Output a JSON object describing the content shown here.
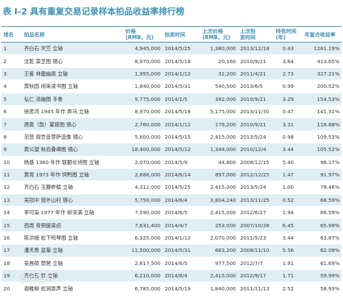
{
  "title": "表 I-2 具有重复交易记录样本拍品收益率排行榜",
  "headers": {
    "rank": "排名",
    "name": "拍品名称",
    "price_line1": "价格",
    "price_line2": "(RMB，元)",
    "date": "拍卖时间",
    "prev_price_line1": "上次价格",
    "prev_price_line2": "(RMB，元)",
    "prev_date_line1": "上次拍",
    "prev_date_line2": "卖时间",
    "hold_line1": "持有时间",
    "hold_line2": "(年)",
    "rate": "年复合收益率"
  },
  "rows": [
    {
      "rank": "1",
      "name": "齐白石 天竺 立轴",
      "price": "4,945,000",
      "date": "2014/5/25",
      "prev_price": "1,380,000",
      "prev_date": "2013/12/18",
      "hold": "0.43",
      "rate": "1281.19%"
    },
    {
      "rank": "2",
      "name": "沈乾 菜芝图 镜心",
      "price": "8,970,000",
      "date": "2014/5/18",
      "prev_price": "20,160",
      "prev_date": "2010/9/21",
      "hold": "3.64",
      "rate": "413.65%"
    },
    {
      "rank": "3",
      "name": "王鉴 林壑幽居 立轴",
      "price": "1,955,000",
      "date": "2014/1/12",
      "prev_price": "32,200",
      "prev_date": "2011/4/21",
      "hold": "2.73",
      "rate": "327.21%"
    },
    {
      "rank": "4",
      "name": "黄秋园 闲来读书图 立轴",
      "price": "1,840,000",
      "date": "2014/5/31",
      "prev_price": "540,500",
      "prev_date": "2013/6/5",
      "hold": "0.99",
      "rate": "200.52%"
    },
    {
      "rank": "5",
      "name": "弘仁 清幽图 手卷",
      "price": "9,775,000",
      "date": "2014/1/5",
      "prev_price": "392,000",
      "prev_date": "2010/9/21",
      "hold": "3.29",
      "rate": "154.53%"
    },
    {
      "rank": "6",
      "name": "徐悲鸿 1945 年作 奔马 立轴",
      "price": "8,970,000",
      "date": "2014/5/18",
      "prev_price": "5,175,000",
      "prev_date": "2013/11/30",
      "hold": "0.47",
      "rate": "141.31%"
    },
    {
      "rank": "7",
      "name": "唐寅（款）宴居图 镜心",
      "price": "2,760,000",
      "date": "2014/1/12",
      "prev_price": "179,200",
      "prev_date": "2010/9/21",
      "hold": "3.31",
      "rate": "118.88%"
    },
    {
      "rank": "8",
      "name": "范曾 观世音菩萨造像 镜心",
      "price": "5,600,000",
      "date": "2014/5/15",
      "prev_price": "2,415,000",
      "prev_date": "2013/5/24",
      "hold": "0.98",
      "rate": "109.53%"
    },
    {
      "rank": "9",
      "name": "黄公望 秋岩叠嶂图 镜心",
      "price": "18,400,000",
      "date": "2014/5/12",
      "prev_price": "1,344,000",
      "prev_date": "2010/12/4",
      "hold": "3.44",
      "rate": "105.52%"
    },
    {
      "rank": "10",
      "name": "杨基 1360 年作 联额论诗图 立轴",
      "price": "2,070,000",
      "date": "2014/5/9",
      "prev_price": "44,800",
      "prev_date": "2008/12/15",
      "hold": "5.40",
      "rate": "98.17%"
    },
    {
      "rank": "11",
      "name": "黄胄 1973 年作 饲鸭图 立轴",
      "price": "2,688,000",
      "date": "2014/6/14",
      "prev_price": "897,000",
      "prev_date": "2012/12/25",
      "hold": "1.47",
      "rate": "91.97%"
    },
    {
      "rank": "12",
      "name": "齐白石 玉簪蚱蜢 立轴",
      "price": "4,312,000",
      "date": "2014/5/25",
      "prev_price": "2,415,000",
      "prev_date": "2013/5/24",
      "hold": "1.00",
      "rate": "78.46%"
    },
    {
      "rank": "13",
      "name": "吴冠中 窗外山村 镜心",
      "price": "5,750,000",
      "date": "2014/6/4",
      "prev_price": "3,804,240",
      "prev_date": "2013/11/25",
      "hold": "0.52",
      "rate": "68.59%"
    },
    {
      "rank": "14",
      "name": "李可染 1977 年作 树深满 立轴",
      "price": "7,590,000",
      "date": "2014/6/5",
      "prev_price": "2,415,000",
      "prev_date": "2012/6/27",
      "hold": "1.94",
      "rate": "66.59%"
    },
    {
      "rank": "15",
      "name": "西周 青铜提梁卣",
      "price": "7,631,400",
      "date": "2014/4/7",
      "prev_price": "253,000",
      "prev_date": "2007/10/28",
      "hold": "6.45",
      "rate": "65.99%"
    },
    {
      "rank": "16",
      "name": "陈洪绶 松下鸣琴图 立轴",
      "price": "6,325,000",
      "date": "2014/1/12",
      "prev_price": "2,070,000",
      "prev_date": "2011/5/23",
      "hold": "3.44",
      "rate": "63.87%"
    },
    {
      "rank": "17",
      "name": "潘天寿 盆菊 立轴",
      "price": "11,500,000",
      "date": "2014/5/31",
      "prev_price": "683,200",
      "prev_date": "2008/11/10",
      "hold": "5.56",
      "rate": "62.09%"
    },
    {
      "rank": "18",
      "name": "吴昌硕 琵琶 立轴",
      "price": "2,817,500",
      "date": "2014/6/5",
      "prev_price": "977,500",
      "prev_date": "2012/7/7",
      "hold": "1.91",
      "rate": "61.69%"
    },
    {
      "rank": "19",
      "name": "齐白石 虾 立轴",
      "price": "6,210,000",
      "date": "2014/6/4",
      "prev_price": "2,415,000",
      "prev_date": "2012/9/17",
      "hold": "1.71",
      "rate": "59.99%"
    },
    {
      "rank": "20",
      "name": "谢稚柳 松涧泉声 立轴",
      "price": "6,785,000",
      "date": "2014/5/19",
      "prev_price": "1,840,000",
      "prev_date": "2011/11/13",
      "hold": "2.52",
      "rate": "58.93%"
    }
  ],
  "watermark": "百度百科",
  "colors": {
    "accent": "#3f8fb3",
    "stripe": "#dfeef5"
  }
}
